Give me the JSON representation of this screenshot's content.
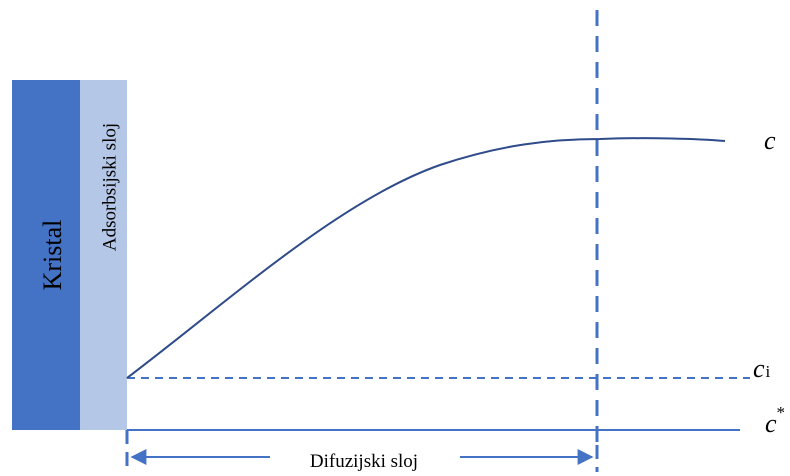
{
  "labels": {
    "crystal": "Kristal",
    "adsorption_layer": "Adsorbsijski sloj",
    "diffusion_layer": "Difuzijski sloj",
    "c": "c",
    "ci_main": "c",
    "ci_sub": "i",
    "cstar_main": "c",
    "cstar_sup": "*"
  },
  "colors": {
    "crystal": "#4472C4",
    "adsorption_layer": "#B4C7E7",
    "curve": "#2F4B8A",
    "dashed_lines": "#4472C4",
    "baseline": "#4472C4",
    "text": "#000000"
  }
}
